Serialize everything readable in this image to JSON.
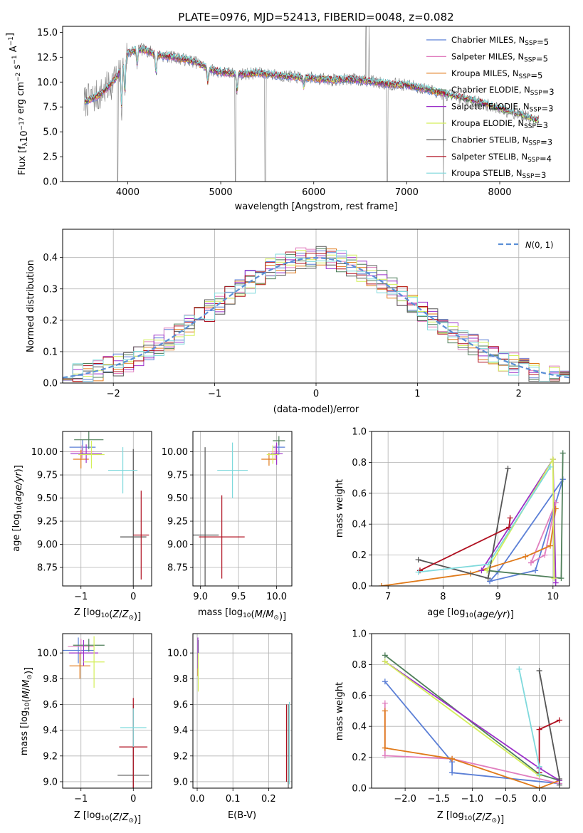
{
  "palette": {
    "chabrier_miles": "#5b7fd6",
    "salpeter_miles": "#e07fbf",
    "kroupa_miles": "#e07a1a",
    "chabrier_elodie": "#4f7f5a",
    "salpeter_elodie": "#9b30c9",
    "kroupa_elodie": "#d4ef5a",
    "chabrier_stelib": "#555555",
    "salpeter_stelib": "#b01020",
    "kroupa_stelib": "#7fd9dc",
    "grid": "#b0b0b0",
    "normal": "#5b8fd6"
  },
  "chart_data": [
    {
      "id": "spectrum",
      "type": "line",
      "title": "PLATE=0976, MJD=52413, FIBERID=0048, z=0.082",
      "xlabel": "wavelength [Angstrom, rest frame]",
      "ylabel": "Flux [f_λ10^-17 erg cm^-2 s^-1 A^-1]",
      "xlim": [
        3300,
        8750
      ],
      "ylim": [
        0,
        15.6
      ],
      "xticks": [
        "4000",
        "5000",
        "6000",
        "7000",
        "8000"
      ],
      "yticks": [
        "0.0",
        "2.5",
        "5.0",
        "7.5",
        "10.0",
        "12.5",
        "15.0"
      ],
      "grid": false,
      "legend_position": "top-right",
      "continuum": {
        "x": [
          3530,
          3600,
          3700,
          3800,
          3900,
          3960,
          4000,
          4100,
          4200,
          4300,
          4400,
          4500,
          4600,
          4700,
          4800,
          4900,
          5000,
          5200,
          5400,
          5600,
          5800,
          6000,
          6200,
          6400,
          6600,
          6800,
          7000,
          7200,
          7400,
          7600,
          7800,
          8000,
          8200,
          8400
        ],
        "y": [
          8.0,
          8.3,
          8.7,
          9.6,
          10.8,
          12.2,
          12.9,
          13.3,
          13.2,
          12.8,
          12.6,
          12.5,
          12.3,
          12.1,
          11.7,
          11.2,
          11.0,
          10.8,
          10.9,
          10.7,
          10.5,
          10.4,
          10.2,
          10.3,
          10.1,
          9.8,
          9.7,
          9.3,
          8.8,
          8.4,
          7.9,
          7.3,
          6.8,
          6.1
        ]
      },
      "absorption_dips": [
        {
          "x": 3934,
          "depth": 4.0
        },
        {
          "x": 3969,
          "depth": 3.5
        },
        {
          "x": 4102,
          "depth": 1.5
        },
        {
          "x": 4305,
          "depth": 2.0
        },
        {
          "x": 4861,
          "depth": 1.5
        },
        {
          "x": 5175,
          "depth": 1.8
        },
        {
          "x": 5893,
          "depth": 1.0
        }
      ],
      "series": [
        {
          "name": "Chabrier MILES, N_SSP=5",
          "color_key": "chabrier_miles"
        },
        {
          "name": "Salpeter MILES, N_SSP=5",
          "color_key": "salpeter_miles"
        },
        {
          "name": "Kroupa MILES, N_SSP=5",
          "color_key": "kroupa_miles"
        },
        {
          "name": "Chabrier ELODIE, N_SSP=3",
          "color_key": "chabrier_elodie"
        },
        {
          "name": "Salpeter ELODIE, N_SSP=3",
          "color_key": "salpeter_elodie"
        },
        {
          "name": "Kroupa ELODIE, N_SSP=3",
          "color_key": "kroupa_elodie"
        },
        {
          "name": "Chabrier STELIB, N_SSP=3",
          "color_key": "chabrier_stelib"
        },
        {
          "name": "Salpeter STELIB, N_SSP=4",
          "color_key": "salpeter_stelib"
        },
        {
          "name": "Kroupa STELIB, N_SSP=3",
          "color_key": "kroupa_stelib"
        }
      ]
    },
    {
      "id": "residuals",
      "type": "line",
      "xlabel": "(data-model)/error",
      "ylabel": "Normed distribution",
      "xlim": [
        -2.5,
        2.5
      ],
      "ylim": [
        0,
        0.49
      ],
      "xticks": [
        "−2",
        "−1",
        "0",
        "1",
        "2"
      ],
      "yticks": [
        "0.0",
        "0.1",
        "0.2",
        "0.3",
        "0.4"
      ],
      "grid": true,
      "legend_position": "top-right",
      "legend": "N(0, 1)",
      "bin_width": 0.1
    },
    {
      "id": "age_vs_Z",
      "type": "scatter",
      "xlabel": "Z [log10(Z/Z⊙)]",
      "ylabel": "age [log10(age/yr)]",
      "xlim": [
        -1.35,
        0.35
      ],
      "ylim": [
        8.55,
        10.22
      ],
      "xticks": [
        "−1",
        "0"
      ],
      "yticks": [
        "8.75",
        "9.00",
        "9.25",
        "9.50",
        "9.75",
        "10.00"
      ],
      "grid": true,
      "points": [
        {
          "x": -0.97,
          "y": 10.05,
          "xerr": 0.25,
          "yerr": 0.08,
          "color_key": "chabrier_miles"
        },
        {
          "x": -0.98,
          "y": 10.0,
          "xerr": 0.22,
          "yerr": 0.07,
          "color_key": "salpeter_miles"
        },
        {
          "x": -1.0,
          "y": 9.92,
          "xerr": 0.15,
          "yerr": 0.1,
          "color_key": "kroupa_miles"
        },
        {
          "x": -0.85,
          "y": 10.13,
          "xerr": 0.28,
          "yerr": 0.1,
          "color_key": "chabrier_elodie"
        },
        {
          "x": -0.9,
          "y": 9.98,
          "xerr": 0.3,
          "yerr": 0.1,
          "color_key": "salpeter_elodie"
        },
        {
          "x": -0.8,
          "y": 9.97,
          "xerr": 0.25,
          "yerr": 0.15,
          "color_key": "kroupa_elodie"
        },
        {
          "x": 0.0,
          "y": 9.08,
          "xerr": 0.25,
          "yerr": 0.95,
          "color_key": "chabrier_stelib"
        },
        {
          "x": 0.15,
          "y": 9.1,
          "xerr": 0.15,
          "yerr": 0.48,
          "color_key": "salpeter_stelib"
        },
        {
          "x": -0.2,
          "y": 9.8,
          "xerr": 0.28,
          "yerr": 0.25,
          "color_key": "kroupa_stelib"
        }
      ]
    },
    {
      "id": "age_vs_mass",
      "type": "scatter",
      "xlabel": "mass [log10(M/M⊙)]",
      "xlim": [
        8.9,
        10.2
      ],
      "ylim": [
        8.55,
        10.22
      ],
      "xticks": [
        "9.0",
        "9.5",
        "10.0"
      ],
      "yticks": [
        "8.75",
        "9.00",
        "9.25",
        "9.50",
        "9.75",
        "10.00"
      ],
      "grid": true,
      "points": [
        {
          "x": 10.03,
          "y": 10.05,
          "xerr": 0.08,
          "yerr": 0.08,
          "color_key": "chabrier_miles"
        },
        {
          "x": 9.98,
          "y": 10.0,
          "xerr": 0.05,
          "yerr": 0.07,
          "color_key": "salpeter_miles"
        },
        {
          "x": 9.9,
          "y": 9.92,
          "xerr": 0.1,
          "yerr": 0.07,
          "color_key": "kroupa_miles"
        },
        {
          "x": 10.03,
          "y": 10.12,
          "xerr": 0.08,
          "yerr": 0.05,
          "color_key": "chabrier_elodie"
        },
        {
          "x": 10.0,
          "y": 9.98,
          "xerr": 0.08,
          "yerr": 0.12,
          "color_key": "salpeter_elodie"
        },
        {
          "x": 9.95,
          "y": 9.97,
          "xerr": 0.08,
          "yerr": 0.1,
          "color_key": "kroupa_elodie"
        },
        {
          "x": 9.06,
          "y": 9.1,
          "xerr": 0.18,
          "yerr": 0.95,
          "color_key": "chabrier_stelib"
        },
        {
          "x": 9.28,
          "y": 9.08,
          "xerr": 0.3,
          "yerr": 0.45,
          "color_key": "salpeter_stelib"
        },
        {
          "x": 9.42,
          "y": 9.8,
          "xerr": 0.2,
          "yerr": 0.3,
          "color_key": "kroupa_stelib"
        }
      ]
    },
    {
      "id": "weight_vs_age",
      "type": "line",
      "xlabel": "age [log10(age/yr)]",
      "ylabel": "mass weight",
      "xlim": [
        6.7,
        10.3
      ],
      "ylim": [
        0,
        1.0
      ],
      "xticks": [
        "7",
        "8",
        "9",
        "10"
      ],
      "yticks": [
        "0.0",
        "0.2",
        "0.4",
        "0.6",
        "0.8",
        "1.0"
      ],
      "grid": true,
      "series": [
        {
          "color_key": "chabrier_miles",
          "x": [
            10.18,
            9.68,
            8.85,
            9.0,
            10.18
          ],
          "y": [
            0.69,
            0.1,
            0.03,
            0.09,
            0.69
          ]
        },
        {
          "color_key": "salpeter_miles",
          "x": [
            9.6,
            9.85,
            10.05,
            9.6
          ],
          "y": [
            0.15,
            0.2,
            0.54,
            0.15
          ]
        },
        {
          "color_key": "kroupa_miles",
          "x": [
            6.88,
            8.5,
            9.5,
            9.95,
            10.05
          ],
          "y": [
            0.0,
            0.08,
            0.19,
            0.26,
            0.5
          ]
        },
        {
          "color_key": "chabrier_elodie",
          "x": [
            8.8,
            10.15,
            10.18
          ],
          "y": [
            0.1,
            0.05,
            0.86
          ]
        },
        {
          "color_key": "salpeter_elodie",
          "x": [
            8.7,
            10.0,
            10.05
          ],
          "y": [
            0.1,
            0.82,
            0.02
          ]
        },
        {
          "color_key": "kroupa_elodie",
          "x": [
            8.8,
            10.0,
            10.02
          ],
          "y": [
            0.1,
            0.82,
            0.05
          ]
        },
        {
          "color_key": "chabrier_stelib",
          "x": [
            7.55,
            8.82,
            9.18
          ],
          "y": [
            0.17,
            0.05,
            0.76
          ]
        },
        {
          "color_key": "salpeter_stelib",
          "x": [
            7.58,
            9.2,
            9.22
          ],
          "y": [
            0.1,
            0.38,
            0.44
          ]
        },
        {
          "color_key": "kroupa_stelib",
          "x": [
            7.55,
            8.82,
            9.95
          ],
          "y": [
            0.09,
            0.14,
            0.77
          ]
        }
      ]
    },
    {
      "id": "mass_vs_Z",
      "type": "scatter",
      "xlabel": "Z [log10(Z/Z⊙)]",
      "ylabel": "mass [log10(M/M⊙)]",
      "xlim": [
        -1.35,
        0.35
      ],
      "ylim": [
        8.95,
        10.15
      ],
      "xticks": [
        "−1",
        "0"
      ],
      "yticks": [
        "9.0",
        "9.2",
        "9.4",
        "9.6",
        "9.8",
        "10.0"
      ],
      "grid": true,
      "points": [
        {
          "x": -1.05,
          "y": 10.02,
          "xerr": 0.3,
          "yerr": 0.1,
          "color_key": "chabrier_miles"
        },
        {
          "x": -1.0,
          "y": 10.05,
          "xerr": 0.25,
          "yerr": 0.06,
          "color_key": "salpeter_miles"
        },
        {
          "x": -1.02,
          "y": 9.9,
          "xerr": 0.2,
          "yerr": 0.1,
          "color_key": "kroupa_miles"
        },
        {
          "x": -0.85,
          "y": 10.06,
          "xerr": 0.3,
          "yerr": 0.05,
          "color_key": "chabrier_elodie"
        },
        {
          "x": -0.95,
          "y": 10.0,
          "xerr": 0.28,
          "yerr": 0.1,
          "color_key": "salpeter_elodie"
        },
        {
          "x": -0.75,
          "y": 9.93,
          "xerr": 0.2,
          "yerr": 0.2,
          "color_key": "kroupa_elodie"
        },
        {
          "x": 0.0,
          "y": 9.05,
          "xerr": 0.3,
          "yerr": 0.55,
          "color_key": "chabrier_stelib"
        },
        {
          "x": 0.0,
          "y": 9.27,
          "xerr": 0.27,
          "yerr": 0.38,
          "color_key": "salpeter_stelib"
        },
        {
          "x": 0.0,
          "y": 9.42,
          "xerr": 0.25,
          "yerr": 0.15,
          "color_key": "kroupa_stelib"
        }
      ]
    },
    {
      "id": "mass_vs_EBV",
      "type": "scatter",
      "xlabel": "E(B-V)",
      "xlim": [
        -0.012,
        0.265
      ],
      "ylim": [
        8.95,
        10.15
      ],
      "xticks": [
        "0.0",
        "0.1",
        "0.2"
      ],
      "yticks": [
        "9.0",
        "9.2",
        "9.4",
        "9.6",
        "9.8",
        "10.0"
      ],
      "grid": true,
      "points": [
        {
          "x": 0.002,
          "y": 10.03,
          "yerr": 0.07,
          "color_key": "chabrier_miles"
        },
        {
          "x": 0.002,
          "y": 10.02,
          "yerr": 0.06,
          "color_key": "salpeter_miles"
        },
        {
          "x": 0.002,
          "y": 9.9,
          "yerr": 0.08,
          "color_key": "kroupa_miles"
        },
        {
          "x": 0.003,
          "y": 10.05,
          "yerr": 0.05,
          "color_key": "chabrier_elodie"
        },
        {
          "x": 0.002,
          "y": 10.0,
          "yerr": 0.12,
          "color_key": "salpeter_elodie"
        },
        {
          "x": 0.003,
          "y": 9.85,
          "yerr": 0.15,
          "color_key": "kroupa_elodie"
        },
        {
          "x": 0.255,
          "y": 9.25,
          "yerr": 0.35,
          "color_key": "chabrier_stelib"
        },
        {
          "x": 0.25,
          "y": 9.3,
          "yerr": 0.3,
          "color_key": "salpeter_stelib"
        },
        {
          "x": 0.258,
          "y": 9.3,
          "yerr": 0.32,
          "color_key": "kroupa_stelib"
        }
      ]
    },
    {
      "id": "weight_vs_Z",
      "type": "line",
      "xlabel": "Z [log10(Z/Z⊙)]",
      "ylabel": "mass weight",
      "xlim": [
        -2.5,
        0.45
      ],
      "ylim": [
        0,
        1.0
      ],
      "xticks": [
        "−2.0",
        "−1.5",
        "−1.0",
        "−0.5",
        "0.0"
      ],
      "yticks": [
        "0.0",
        "0.2",
        "0.4",
        "0.6",
        "0.8",
        "1.0"
      ],
      "grid": true,
      "series": [
        {
          "color_key": "chabrier_miles",
          "x": [
            -2.3,
            -1.3,
            -1.3,
            0.3
          ],
          "y": [
            0.69,
            0.17,
            0.1,
            0.03
          ]
        },
        {
          "color_key": "salpeter_miles",
          "x": [
            -2.3,
            -2.3,
            -1.3,
            0.3
          ],
          "y": [
            0.55,
            0.21,
            0.19,
            0.03
          ]
        },
        {
          "color_key": "kroupa_miles",
          "x": [
            -2.3,
            -2.3,
            -1.3,
            0.0,
            0.3
          ],
          "y": [
            0.5,
            0.26,
            0.19,
            0.0,
            0.05
          ]
        },
        {
          "color_key": "chabrier_elodie",
          "x": [
            -2.3,
            0.0,
            0.3
          ],
          "y": [
            0.86,
            0.09,
            0.05
          ]
        },
        {
          "color_key": "salpeter_elodie",
          "x": [
            -2.3,
            0.0,
            0.3
          ],
          "y": [
            0.82,
            0.13,
            0.05
          ]
        },
        {
          "color_key": "kroupa_elodie",
          "x": [
            -2.3,
            0.0
          ],
          "y": [
            0.82,
            0.08
          ]
        },
        {
          "color_key": "chabrier_stelib",
          "x": [
            0.0,
            0.3,
            0.3
          ],
          "y": [
            0.76,
            0.06,
            0.02
          ]
        },
        {
          "color_key": "salpeter_stelib",
          "x": [
            0.0,
            0.0,
            0.3
          ],
          "y": [
            0.1,
            0.38,
            0.44
          ]
        },
        {
          "color_key": "kroupa_stelib",
          "x": [
            -0.3,
            0.0,
            0.0
          ],
          "y": [
            0.77,
            0.14,
            0.09
          ]
        }
      ]
    }
  ]
}
